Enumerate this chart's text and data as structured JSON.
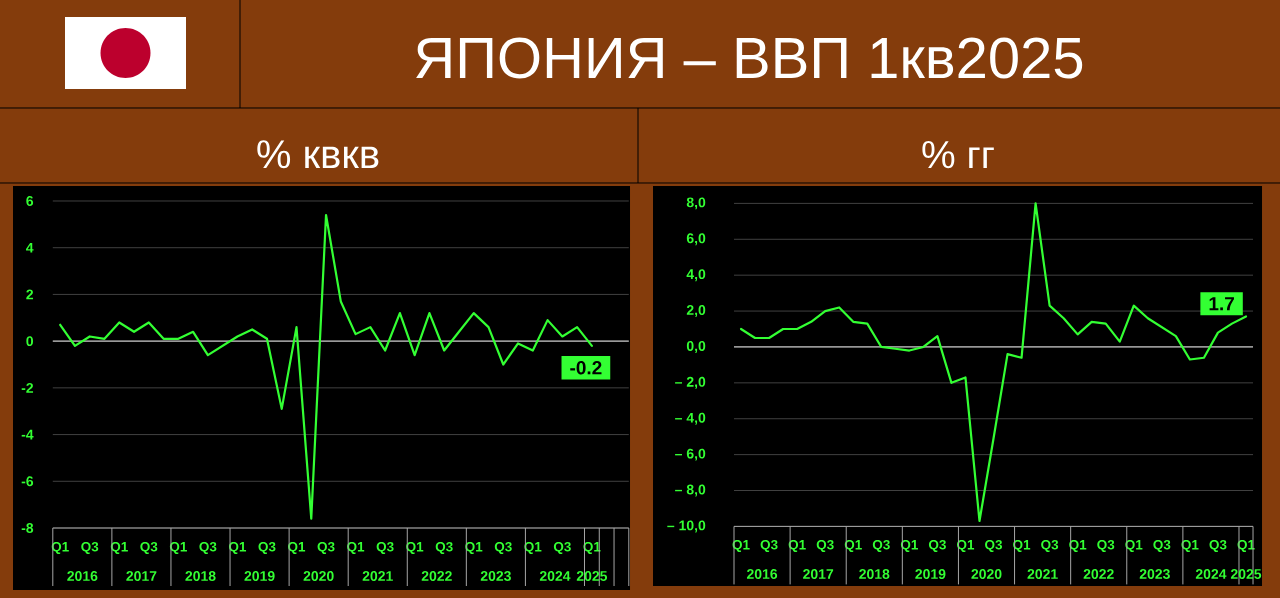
{
  "chart_data": [
    {
      "type": "line",
      "title": "ЯПОНИЯ – ВВП 1кв2025",
      "subtitle": "% квкв",
      "categories": [
        "Q1",
        null,
        "Q3",
        null,
        "Q1",
        null,
        "Q3",
        null,
        "Q1",
        null,
        "Q3",
        null,
        "Q1",
        null,
        "Q3",
        null,
        "Q1",
        null,
        "Q3",
        null,
        "Q1",
        null,
        "Q3",
        null,
        "Q1",
        null,
        "Q3",
        null,
        "Q1",
        null,
        "Q3",
        null,
        "Q1",
        null,
        "Q3",
        null,
        "Q1"
      ],
      "values": [
        0.7,
        -0.2,
        0.2,
        0.1,
        0.8,
        0.4,
        0.8,
        0.1,
        0.1,
        0.4,
        -0.6,
        -0.2,
        0.2,
        0.5,
        0.1,
        -2.9,
        0.6,
        -7.6,
        5.4,
        1.7,
        0.3,
        0.6,
        -0.4,
        1.2,
        -0.6,
        1.2,
        -0.4,
        0.4,
        1.2,
        0.6,
        -1.0,
        -0.1,
        -0.4,
        0.9,
        0.2,
        0.6,
        -0.2
      ],
      "color": "#33ff33",
      "line_style": "solid",
      "value_labels": [
        null,
        null,
        null,
        null,
        null,
        null,
        null,
        null,
        null,
        null,
        null,
        null,
        null,
        null,
        null,
        null,
        null,
        null,
        null,
        null,
        null,
        null,
        null,
        null,
        null,
        null,
        null,
        null,
        null,
        null,
        null,
        null,
        null,
        null,
        null,
        null,
        "-0.2"
      ],
      "ylim": [
        -8,
        6
      ],
      "yticks": [
        -8,
        -6,
        -4,
        -2,
        0,
        2,
        4,
        6
      ],
      "grid": "y",
      "ref_lines": [
        {
          "axis": "y",
          "value": 0,
          "color": "#bfbfbf"
        }
      ],
      "annotations": [
        "2016",
        "2017",
        "2018",
        "2019",
        "2020",
        "2021",
        "2022",
        "2023",
        "2024",
        "2025"
      ]
    },
    {
      "type": "line",
      "subtitle": "% гг",
      "categories": [
        "Q1",
        null,
        "Q3",
        null,
        "Q1",
        null,
        "Q3",
        null,
        "Q1",
        null,
        "Q3",
        null,
        "Q1",
        null,
        "Q3",
        null,
        "Q1",
        null,
        "Q3",
        null,
        "Q1",
        null,
        "Q3",
        null,
        "Q1",
        null,
        "Q3",
        null,
        "Q1",
        null,
        "Q3",
        null,
        "Q1",
        null,
        "Q3",
        null,
        "Q1"
      ],
      "values": [
        1.0,
        0.5,
        0.5,
        1.0,
        1.0,
        1.4,
        2.0,
        2.2,
        1.4,
        1.3,
        0.0,
        -0.1,
        -0.2,
        0.0,
        0.6,
        -2.0,
        -1.7,
        -9.7,
        -5.1,
        -0.4,
        -0.6,
        8.0,
        2.3,
        1.6,
        0.7,
        1.4,
        1.3,
        0.3,
        2.3,
        1.6,
        1.1,
        0.6,
        -0.7,
        -0.6,
        0.8,
        1.3,
        1.7
      ],
      "color": "#33ff33",
      "line_style": "solid",
      "value_labels": [
        null,
        null,
        null,
        null,
        null,
        null,
        null,
        null,
        null,
        null,
        null,
        null,
        null,
        null,
        null,
        null,
        null,
        null,
        null,
        null,
        null,
        null,
        null,
        null,
        null,
        null,
        null,
        null,
        null,
        null,
        null,
        null,
        null,
        null,
        null,
        null,
        "1.7"
      ],
      "ylim": [
        -10,
        8
      ],
      "yticks": [
        {
          "value": -10,
          "label": "– 10,0"
        },
        {
          "value": -8,
          "label": "– 8,0"
        },
        {
          "value": -6,
          "label": "– 6,0"
        },
        {
          "value": -4,
          "label": "– 4,0"
        },
        {
          "value": -2,
          "label": "– 2,0"
        },
        {
          "value": 0,
          "label": "0,0"
        },
        {
          "value": 2,
          "label": "2,0"
        },
        {
          "value": 4,
          "label": "4,0"
        },
        {
          "value": 6,
          "label": "6,0"
        },
        {
          "value": 8,
          "label": "8,0"
        }
      ],
      "grid": "y",
      "ref_lines": [
        {
          "axis": "y",
          "value": 0,
          "color": "#bfbfbf"
        }
      ],
      "annotations": [
        "2016",
        "2017",
        "2018",
        "2019",
        "2020",
        "2021",
        "2022",
        "2023",
        "2024",
        "2025"
      ]
    }
  ]
}
